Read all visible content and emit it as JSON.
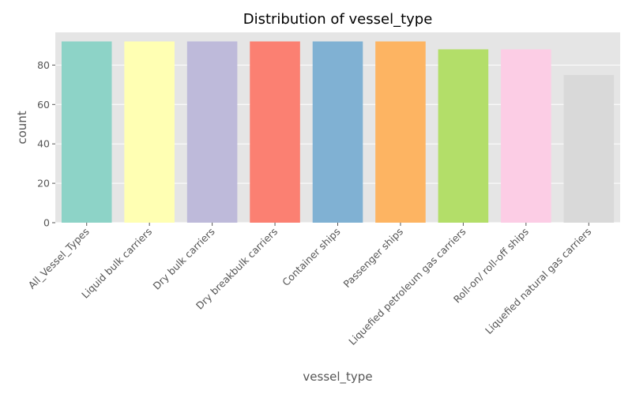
{
  "chart_data": {
    "type": "bar",
    "title": "Distribution of vessel_type",
    "xlabel": "vessel_type",
    "ylabel": "count",
    "ylim": [
      0,
      96.6
    ],
    "yticks": [
      0,
      20,
      40,
      60,
      80
    ],
    "grid": true,
    "categories": [
      "All_Vessel_Types",
      "Liquid bulk carriers",
      "Dry bulk carriers",
      "Dry breakbulk carriers",
      "Container ships",
      "Passenger ships",
      "Liquefied petroleum gas carriers",
      "Roll-on/ roll-off ships",
      "Liquefied natural gas carriers"
    ],
    "values": [
      92,
      92,
      92,
      92,
      92,
      92,
      88,
      88,
      75
    ],
    "colors": [
      "#8dd3c7",
      "#ffffb3",
      "#bebada",
      "#fb8072",
      "#80b1d3",
      "#fdb462",
      "#b3de69",
      "#fccde5",
      "#d9d9d9"
    ]
  }
}
